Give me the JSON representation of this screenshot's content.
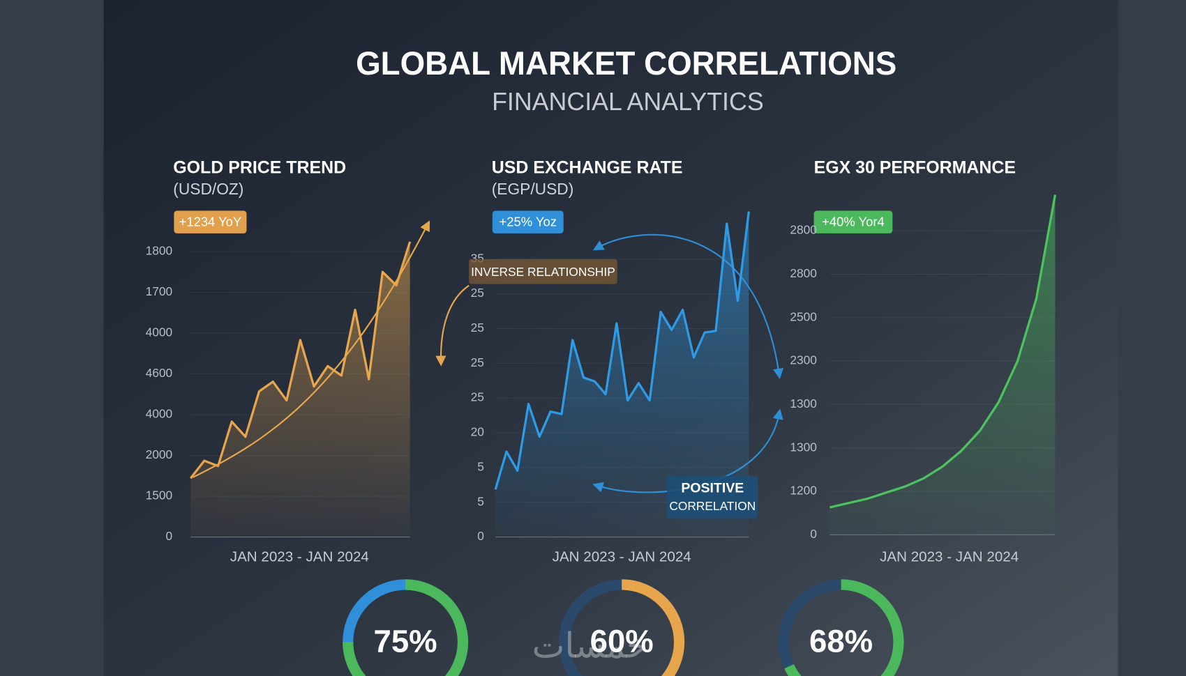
{
  "header": {
    "title": "GLOBAL MARKET CORRELATIONS",
    "subtitle": "FINANCIAL ANALYTICS"
  },
  "annotations": [
    "INVERSE RELATIONSHIP",
    "POSITIVE",
    "CORRELATION"
  ],
  "watermark": "خمسات",
  "chart_data": [
    {
      "type": "line",
      "title": "GOLD PRICE TREND",
      "subtitle": "(USD/OZ)",
      "badge": "+1234 YoY",
      "badge_color": "#e3a04c",
      "xlabel": "JAN 2023 - JAN 2024",
      "color": "#e8a64c",
      "grid": true,
      "values": [
        1.44,
        1.87,
        1.74,
        2.83,
        2.46,
        3.57,
        3.81,
        3.35,
        4.83,
        3.69,
        4.19,
        3.96,
        5.57,
        3.87,
        6.5,
        6.17,
        7.24
      ],
      "ylim": [
        0,
        7.5
      ],
      "yticks": [
        0,
        {
          "value": 1,
          "label": "1500"
        },
        {
          "value": 2,
          "label": "2000"
        },
        {
          "value": 3,
          "label": "4000"
        },
        {
          "value": 4,
          "label": "4600"
        },
        {
          "value": 5,
          "label": "4000"
        },
        {
          "value": 6,
          "label": "1700"
        },
        {
          "value": 7,
          "label": "1800"
        }
      ]
    },
    {
      "type": "line",
      "title": "USD EXCHANGE RATE",
      "subtitle": "(EGP/USD)",
      "badge": "+25% Yoz",
      "badge_color": "#2f8fd8",
      "xlabel": "JAN 2023 - JAN 2024",
      "color": "#2e9be6",
      "grid": true,
      "values": [
        1.37,
        2.46,
        1.91,
        3.83,
        2.89,
        3.61,
        3.54,
        5.67,
        4.59,
        4.48,
        4.11,
        6.15,
        3.93,
        4.43,
        3.93,
        6.48,
        5.96,
        6.54,
        5.17,
        5.89,
        5.93,
        9.02,
        6.8,
        9.37
      ],
      "ylim": [
        0,
        9.5
      ],
      "yticks": [
        0,
        {
          "value": 1,
          "label": "5"
        },
        {
          "value": 2,
          "label": "5"
        },
        {
          "value": 3,
          "label": "20"
        },
        {
          "value": 4,
          "label": "25"
        },
        {
          "value": 5,
          "label": "25"
        },
        {
          "value": 6,
          "label": "25"
        },
        {
          "value": 7,
          "label": "25"
        },
        {
          "value": 8,
          "label": "35"
        }
      ]
    },
    {
      "type": "line",
      "title": "EGX 30 PERFORMANCE",
      "badge": "+40% Yor4",
      "badge_color": "#4cb85c",
      "xlabel": "JAN 2023 - JAN 2024",
      "color": "#4cc45e",
      "grid": true,
      "values": [
        0.63,
        0.73,
        0.83,
        0.97,
        1.11,
        1.3,
        1.57,
        1.93,
        2.4,
        3.06,
        4.0,
        5.44,
        7.83
      ],
      "ylim": [
        0,
        8
      ],
      "yticks": [
        0,
        {
          "value": 1,
          "label": "1200"
        },
        {
          "value": 2,
          "label": "1300"
        },
        {
          "value": 3,
          "label": "1300"
        },
        {
          "value": 4,
          "label": "2300"
        },
        {
          "value": 5,
          "label": "2500"
        },
        {
          "value": 6,
          "label": "2800"
        },
        {
          "value": 7,
          "label": "2800"
        }
      ]
    },
    {
      "type": "donut",
      "values": [
        75
      ],
      "value_labels": [
        "75%"
      ],
      "color": "#4cb85c",
      "track_color": "#2f8fd8"
    },
    {
      "type": "donut",
      "values": [
        60
      ],
      "value_labels": [
        "60%"
      ],
      "color": "#e8a64c",
      "track_color": "#2b4a6b"
    },
    {
      "type": "donut",
      "values": [
        68
      ],
      "value_labels": [
        "68%"
      ],
      "color": "#4cb85c",
      "track_color": "#2b4a6b"
    }
  ]
}
